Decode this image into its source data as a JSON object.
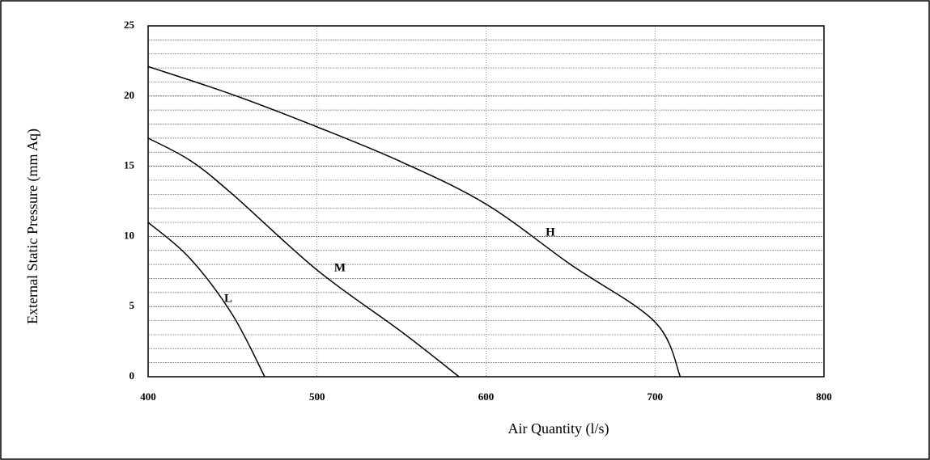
{
  "chart_data": {
    "type": "line",
    "x_label": "Air Quantity (l/s)",
    "y_label": "External Static Pressure (mm Aq)",
    "xlim": [
      400,
      800
    ],
    "xticks": [
      400,
      500,
      600,
      700,
      800
    ],
    "ylim": [
      0,
      25
    ],
    "yticks": [
      0,
      5,
      10,
      15,
      20,
      25
    ],
    "minor_yticks": [
      1,
      2,
      3,
      4,
      6,
      7,
      8,
      9,
      11,
      12,
      13,
      14,
      16,
      17,
      18,
      19,
      21,
      22,
      23,
      24
    ],
    "grid": true,
    "color": "#000000",
    "series": [
      {
        "name": "H",
        "x": [
          400,
          450,
          500,
          550,
          600,
          650,
          700,
          715
        ],
        "values": [
          22.1,
          20.1,
          17.8,
          15.3,
          12.3,
          8.0,
          3.9,
          0
        ]
      },
      {
        "name": "M",
        "x": [
          400,
          425,
          450,
          500,
          550,
          584
        ],
        "values": [
          17,
          15.4,
          13.0,
          7.6,
          3.2,
          0
        ]
      },
      {
        "name": "L",
        "x": [
          400,
          425,
          450,
          469
        ],
        "values": [
          11,
          8.4,
          4.4,
          0
        ]
      }
    ]
  }
}
